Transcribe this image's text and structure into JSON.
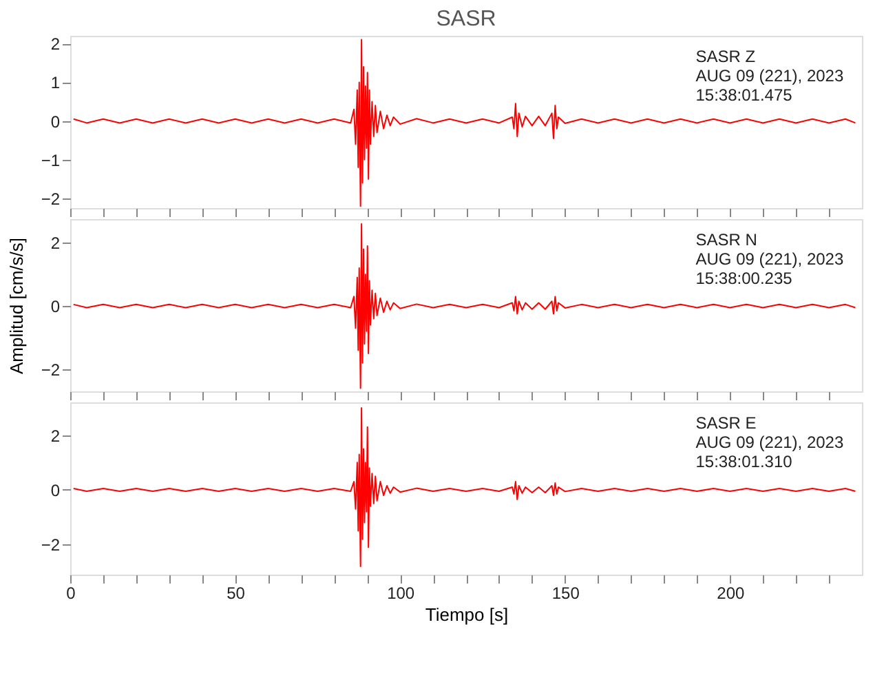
{
  "chart_data": [
    {
      "type": "line",
      "title": "SASR",
      "tick_labels": "y",
      "grid": false,
      "marker": "none",
      "line_style": "solid",
      "annotations": [
        "SASR   Z",
        "AUG 09 (221), 2023",
        "15:38:01.475"
      ],
      "xlim": [
        0,
        240
      ],
      "xticks": [
        0,
        {
          "value": 10,
          "label": null
        },
        {
          "value": 20,
          "label": null
        },
        {
          "value": 30,
          "label": null
        },
        {
          "value": 40,
          "label": null
        },
        50,
        {
          "value": 60,
          "label": null
        },
        {
          "value": 70,
          "label": null
        },
        {
          "value": 80,
          "label": null
        },
        {
          "value": 90,
          "label": null
        },
        100,
        {
          "value": 110,
          "label": null
        },
        {
          "value": 120,
          "label": null
        },
        {
          "value": 130,
          "label": null
        },
        {
          "value": 140,
          "label": null
        },
        150,
        {
          "value": 160,
          "label": null
        },
        {
          "value": 170,
          "label": null
        },
        {
          "value": 180,
          "label": null
        },
        {
          "value": 190,
          "label": null
        },
        200,
        {
          "value": 210,
          "label": null
        },
        {
          "value": 220,
          "label": null
        },
        {
          "value": 230,
          "label": null
        }
      ],
      "ylim": [
        -2.25,
        2.2
      ],
      "yticks": [
        -2,
        -1,
        0,
        1,
        2
      ],
      "x": [
        1,
        5,
        10,
        15,
        20,
        25,
        30,
        35,
        40,
        45,
        50,
        55,
        60,
        65,
        70,
        75,
        80,
        85,
        86,
        86.5,
        87,
        87.3,
        87.6,
        88,
        88.3,
        88.6,
        88.9,
        89.2,
        89.5,
        89.8,
        90.1,
        90.4,
        90.7,
        91,
        91.5,
        92,
        92.5,
        93,
        94,
        95,
        96,
        97,
        98,
        100,
        105,
        110,
        115,
        120,
        125,
        130,
        134,
        134.5,
        135,
        135.5,
        136,
        137,
        138,
        140,
        142,
        144,
        146,
        146.5,
        147,
        147.5,
        148,
        150,
        155,
        160,
        165,
        170,
        175,
        180,
        185,
        190,
        195,
        200,
        205,
        210,
        215,
        220,
        225,
        230,
        235,
        238
      ],
      "series": [
        {
          "color": "#ff0000",
          "values": [
            0.05,
            -0.05,
            0.05,
            -0.05,
            0.05,
            -0.05,
            0.05,
            -0.05,
            0.05,
            -0.05,
            0.05,
            -0.05,
            0.05,
            -0.05,
            0.05,
            -0.05,
            0.05,
            -0.05,
            0.3,
            -0.6,
            0.8,
            -1.2,
            1.0,
            -2.2,
            2.1,
            -1.6,
            1.4,
            -1.0,
            0.9,
            -0.7,
            1.25,
            -1.5,
            0.8,
            -0.6,
            0.5,
            -0.4,
            0.4,
            -0.3,
            0.25,
            -0.2,
            0.15,
            -0.12,
            0.1,
            -0.08,
            0.06,
            -0.05,
            0.05,
            -0.05,
            0.05,
            -0.05,
            0.1,
            -0.2,
            0.45,
            -0.4,
            0.2,
            -0.15,
            0.12,
            -0.12,
            0.12,
            -0.12,
            0.2,
            -0.45,
            0.4,
            -0.2,
            0.1,
            -0.06,
            0.05,
            -0.05,
            0.05,
            -0.05,
            0.05,
            -0.05,
            0.05,
            -0.05,
            0.05,
            -0.05,
            0.05,
            -0.05,
            0.05,
            -0.05,
            0.05,
            -0.05,
            0.05,
            -0.05
          ]
        }
      ]
    },
    {
      "type": "line",
      "ylabel": "Amplitud [cm/s/s]",
      "tick_labels": "y",
      "grid": false,
      "marker": "none",
      "line_style": "solid",
      "annotations": [
        "SASR   N",
        "AUG 09 (221), 2023",
        "15:38:00.235"
      ],
      "xlim": [
        0,
        240
      ],
      "xticks": [
        0,
        {
          "value": 10,
          "label": null
        },
        {
          "value": 20,
          "label": null
        },
        {
          "value": 30,
          "label": null
        },
        {
          "value": 40,
          "label": null
        },
        50,
        {
          "value": 60,
          "label": null
        },
        {
          "value": 70,
          "label": null
        },
        {
          "value": 80,
          "label": null
        },
        {
          "value": 90,
          "label": null
        },
        100,
        {
          "value": 110,
          "label": null
        },
        {
          "value": 120,
          "label": null
        },
        {
          "value": 130,
          "label": null
        },
        {
          "value": 140,
          "label": null
        },
        150,
        {
          "value": 160,
          "label": null
        },
        {
          "value": 170,
          "label": null
        },
        {
          "value": 180,
          "label": null
        },
        {
          "value": 190,
          "label": null
        },
        200,
        {
          "value": 210,
          "label": null
        },
        {
          "value": 220,
          "label": null
        },
        {
          "value": 230,
          "label": null
        }
      ],
      "ylim": [
        -2.7,
        2.75
      ],
      "yticks": [
        -2,
        0,
        2
      ],
      "x": [
        1,
        5,
        10,
        15,
        20,
        25,
        30,
        35,
        40,
        45,
        50,
        55,
        60,
        65,
        70,
        75,
        80,
        85,
        86,
        86.5,
        87,
        87.3,
        87.6,
        88,
        88.3,
        88.6,
        88.9,
        89.2,
        89.5,
        89.8,
        90.1,
        90.4,
        90.7,
        91,
        91.5,
        92,
        92.5,
        93,
        94,
        95,
        96,
        97,
        98,
        100,
        105,
        110,
        115,
        120,
        125,
        130,
        134,
        134.5,
        135,
        135.5,
        136,
        137,
        138,
        140,
        142,
        144,
        146,
        146.5,
        147,
        147.5,
        148,
        150,
        155,
        160,
        165,
        170,
        175,
        180,
        185,
        190,
        195,
        200,
        205,
        210,
        215,
        220,
        225,
        230,
        235,
        238
      ],
      "series": [
        {
          "color": "#ff0000",
          "values": [
            0.05,
            -0.05,
            0.05,
            -0.05,
            0.05,
            -0.05,
            0.05,
            -0.05,
            0.05,
            -0.05,
            0.05,
            -0.05,
            0.05,
            -0.05,
            0.05,
            -0.05,
            0.05,
            -0.05,
            0.3,
            -0.7,
            0.9,
            -1.4,
            1.2,
            -2.6,
            2.6,
            -1.8,
            1.8,
            -1.2,
            1.0,
            -0.8,
            1.9,
            -1.5,
            0.8,
            -0.6,
            0.5,
            -0.4,
            0.4,
            -0.3,
            0.25,
            -0.2,
            0.15,
            -0.12,
            0.1,
            -0.08,
            0.06,
            -0.05,
            0.05,
            -0.05,
            0.05,
            -0.05,
            0.1,
            -0.15,
            0.3,
            -0.25,
            0.15,
            -0.12,
            0.1,
            -0.1,
            0.1,
            -0.1,
            0.15,
            -0.25,
            0.3,
            -0.15,
            0.1,
            -0.06,
            0.05,
            -0.05,
            0.05,
            -0.05,
            0.05,
            -0.05,
            0.05,
            -0.05,
            0.05,
            -0.05,
            0.05,
            -0.05,
            0.05,
            -0.05,
            0.05,
            -0.05,
            0.05,
            -0.05
          ]
        }
      ]
    },
    {
      "type": "line",
      "xlabel": "Tiempo [s]",
      "grid": false,
      "marker": "none",
      "line_style": "solid",
      "annotations": [
        "SASR   E",
        "AUG 09 (221), 2023",
        "15:38:01.310"
      ],
      "xlim": [
        0,
        240
      ],
      "xticks": [
        0,
        {
          "value": 10,
          "label": null
        },
        {
          "value": 20,
          "label": null
        },
        {
          "value": 30,
          "label": null
        },
        {
          "value": 40,
          "label": null
        },
        50,
        {
          "value": 60,
          "label": null
        },
        {
          "value": 70,
          "label": null
        },
        {
          "value": 80,
          "label": null
        },
        {
          "value": 90,
          "label": null
        },
        100,
        {
          "value": 110,
          "label": null
        },
        {
          "value": 120,
          "label": null
        },
        {
          "value": 130,
          "label": null
        },
        {
          "value": 140,
          "label": null
        },
        150,
        {
          "value": 160,
          "label": null
        },
        {
          "value": 170,
          "label": null
        },
        {
          "value": 180,
          "label": null
        },
        {
          "value": 190,
          "label": null
        },
        200,
        {
          "value": 210,
          "label": null
        },
        {
          "value": 220,
          "label": null
        },
        {
          "value": 230,
          "label": null
        }
      ],
      "ylim": [
        -3.1,
        3.2
      ],
      "yticks": [
        -2,
        0,
        2
      ],
      "x": [
        1,
        5,
        10,
        15,
        20,
        25,
        30,
        35,
        40,
        45,
        50,
        55,
        60,
        65,
        70,
        75,
        80,
        85,
        86,
        86.5,
        87,
        87.3,
        87.6,
        88,
        88.3,
        88.6,
        88.9,
        89.2,
        89.5,
        89.8,
        90.1,
        90.4,
        90.7,
        91,
        91.5,
        92,
        92.5,
        93,
        94,
        95,
        96,
        97,
        98,
        100,
        105,
        110,
        115,
        120,
        125,
        130,
        134,
        134.5,
        135,
        135.5,
        136,
        137,
        138,
        140,
        142,
        144,
        146,
        146.5,
        147,
        147.5,
        148,
        150,
        155,
        160,
        165,
        170,
        175,
        180,
        185,
        190,
        195,
        200,
        205,
        210,
        215,
        220,
        225,
        230,
        235,
        238
      ],
      "series": [
        {
          "color": "#ff0000",
          "values": [
            0.05,
            -0.05,
            0.05,
            -0.05,
            0.05,
            -0.05,
            0.05,
            -0.05,
            0.05,
            -0.05,
            0.05,
            -0.05,
            0.05,
            -0.05,
            0.05,
            -0.05,
            0.05,
            -0.05,
            0.3,
            -0.7,
            1.0,
            -1.5,
            1.3,
            -2.8,
            3.0,
            -1.8,
            1.5,
            -1.2,
            1.0,
            -0.8,
            2.3,
            -2.1,
            0.8,
            -0.6,
            0.6,
            -0.5,
            0.5,
            -0.4,
            0.3,
            -0.2,
            0.15,
            -0.12,
            0.1,
            -0.08,
            0.06,
            -0.05,
            0.05,
            -0.05,
            0.05,
            -0.05,
            0.1,
            -0.15,
            0.3,
            -0.35,
            0.15,
            -0.12,
            0.1,
            -0.1,
            0.1,
            -0.1,
            0.15,
            -0.2,
            0.25,
            -0.15,
            0.1,
            -0.06,
            0.05,
            -0.05,
            0.05,
            -0.05,
            0.05,
            -0.05,
            0.05,
            -0.05,
            0.05,
            -0.05,
            0.05,
            -0.05,
            0.05,
            -0.05,
            0.05,
            -0.05,
            0.05,
            -0.05
          ]
        }
      ]
    }
  ]
}
